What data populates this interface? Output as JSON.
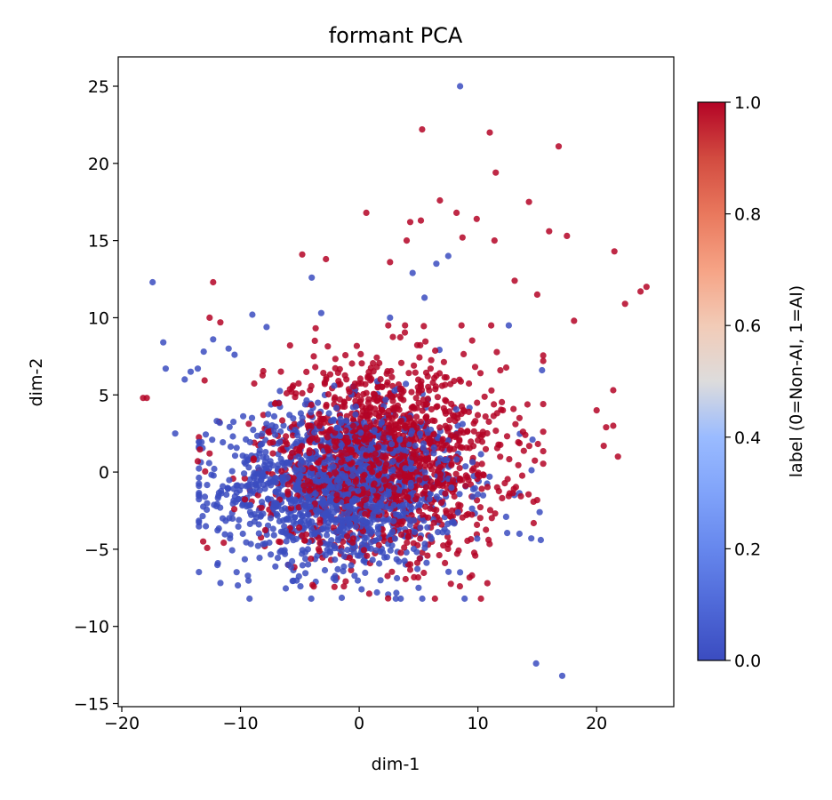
{
  "chart_data": {
    "type": "scatter",
    "title": "formant PCA",
    "xlabel": "dim-1",
    "ylabel": "dim-2",
    "xlim": [
      -20.3,
      26.5
    ],
    "ylim": [
      -15.2,
      26.9
    ],
    "xticks": [
      -20,
      -10,
      0,
      10,
      20
    ],
    "yticks": [
      -15,
      -10,
      -5,
      0,
      5,
      10,
      15,
      20,
      25
    ],
    "colorbar": {
      "label": "label (0=Non-AI, 1=AI)",
      "range": [
        0.0,
        1.0
      ],
      "ticks": [
        "0.0",
        "0.2",
        "0.4",
        "0.6",
        "0.8",
        "1.0"
      ],
      "colormap": "coolwarm",
      "low_color": "#3b4cc0",
      "high_color": "#b40426"
    },
    "grid": false,
    "series": [
      {
        "label_value": 0,
        "color": "#3b4cc0",
        "cluster": {
          "center": [
            -1.5,
            -1.0
          ],
          "spread": [
            5.0,
            2.6
          ],
          "count": 1500
        },
        "points": [
          [
            8.5,
            25.0
          ],
          [
            -17.4,
            12.3
          ],
          [
            -16.5,
            8.4
          ],
          [
            -16.3,
            6.7
          ],
          [
            -15.5,
            2.5
          ],
          [
            -14.7,
            6.0
          ],
          [
            -14.2,
            6.5
          ],
          [
            -13.6,
            6.7
          ],
          [
            -13.1,
            7.8
          ],
          [
            -12.3,
            8.6
          ],
          [
            -11.0,
            8.0
          ],
          [
            -10.5,
            7.6
          ],
          [
            -9.0,
            10.2
          ],
          [
            -7.8,
            9.4
          ],
          [
            -4.0,
            12.6
          ],
          [
            -3.2,
            10.3
          ],
          [
            2.6,
            10.0
          ],
          [
            4.5,
            12.9
          ],
          [
            6.5,
            13.5
          ],
          [
            5.5,
            11.3
          ],
          [
            7.5,
            14.0
          ],
          [
            12.6,
            9.5
          ],
          [
            15.4,
            6.6
          ],
          [
            14.6,
            2.1
          ],
          [
            15.2,
            -2.6
          ],
          [
            15.3,
            -4.4
          ],
          [
            14.5,
            -4.3
          ],
          [
            13.5,
            -4.0
          ],
          [
            3.5,
            -8.2
          ],
          [
            0.2,
            -7.6
          ],
          [
            14.9,
            -12.4
          ],
          [
            17.1,
            -13.2
          ],
          [
            -13.0,
            -1.6
          ],
          [
            -11.5,
            -3.0
          ],
          [
            -9.8,
            -4.0
          ],
          [
            -6.0,
            -6.0
          ],
          [
            -2.0,
            -7.0
          ],
          [
            1.5,
            -7.8
          ],
          [
            5.0,
            -7.5
          ],
          [
            8.5,
            -6.5
          ]
        ]
      },
      {
        "label_value": 1,
        "color": "#b40426",
        "cluster": {
          "center": [
            2.0,
            0.8
          ],
          "spread": [
            5.0,
            3.1
          ],
          "count": 1500
        },
        "points": [
          [
            5.3,
            22.2
          ],
          [
            11.0,
            22.0
          ],
          [
            16.8,
            21.1
          ],
          [
            11.5,
            19.4
          ],
          [
            14.3,
            17.5
          ],
          [
            6.8,
            17.6
          ],
          [
            8.2,
            16.8
          ],
          [
            0.6,
            16.8
          ],
          [
            4.3,
            16.2
          ],
          [
            5.2,
            16.3
          ],
          [
            9.9,
            16.4
          ],
          [
            16.0,
            15.6
          ],
          [
            17.5,
            15.3
          ],
          [
            4.0,
            15.0
          ],
          [
            8.7,
            15.2
          ],
          [
            11.4,
            15.0
          ],
          [
            21.5,
            14.3
          ],
          [
            2.6,
            13.6
          ],
          [
            -4.8,
            14.1
          ],
          [
            -2.8,
            13.8
          ],
          [
            -12.3,
            12.3
          ],
          [
            23.7,
            11.7
          ],
          [
            24.2,
            12.0
          ],
          [
            22.4,
            10.9
          ],
          [
            18.1,
            9.8
          ],
          [
            13.1,
            12.4
          ],
          [
            15.0,
            11.5
          ],
          [
            -12.6,
            10.0
          ],
          [
            -11.7,
            9.7
          ],
          [
            20.0,
            4.0
          ],
          [
            21.4,
            5.3
          ],
          [
            20.8,
            2.9
          ],
          [
            21.4,
            3.0
          ],
          [
            21.8,
            1.0
          ],
          [
            20.6,
            1.7
          ],
          [
            -18.2,
            4.8
          ],
          [
            -17.9,
            4.8
          ],
          [
            -13.6,
            0.7
          ],
          [
            -12.6,
            1.2
          ],
          [
            9.5,
            -6.7
          ],
          [
            10.8,
            -7.2
          ],
          [
            13.5,
            3.5
          ],
          [
            12.1,
            4.0
          ],
          [
            15.5,
            7.2
          ]
        ]
      }
    ]
  }
}
